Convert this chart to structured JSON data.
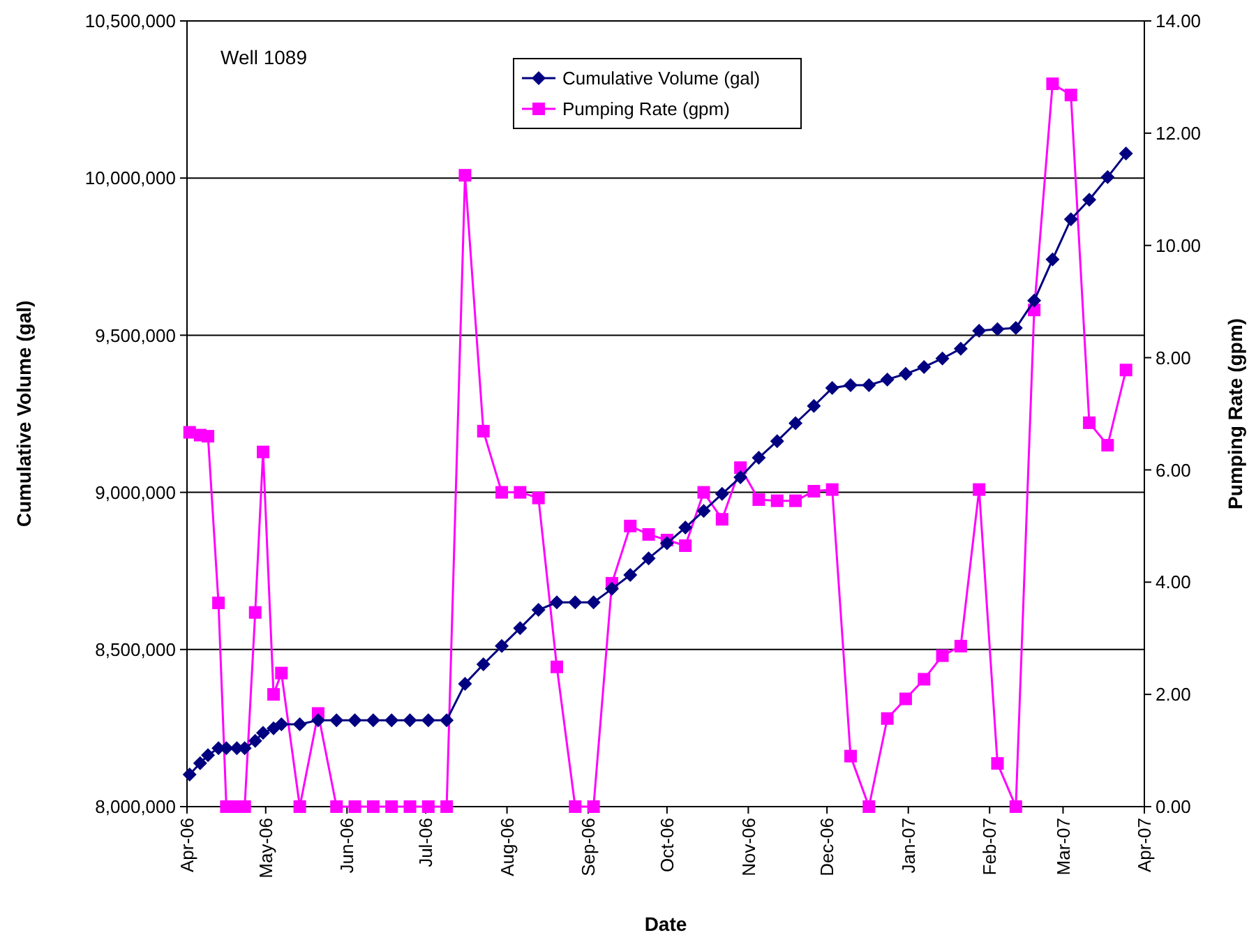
{
  "chart_data": {
    "type": "line",
    "xlabel": "Date",
    "ylabel": "Cumulative Volume (gal)",
    "y2label": "Pumping Rate (gpm)",
    "annotations": [
      "Well 1089"
    ],
    "x": [
      "2006-04-02",
      "2006-04-06",
      "2006-04-09",
      "2006-04-13",
      "2006-04-16",
      "2006-04-20",
      "2006-04-23",
      "2006-04-27",
      "2006-04-30",
      "2006-05-04",
      "2006-05-07",
      "2006-05-14",
      "2006-05-21",
      "2006-05-28",
      "2006-06-04",
      "2006-06-11",
      "2006-06-18",
      "2006-06-25",
      "2006-07-02",
      "2006-07-09",
      "2006-07-16",
      "2006-07-23",
      "2006-07-30",
      "2006-08-06",
      "2006-08-13",
      "2006-08-20",
      "2006-08-27",
      "2006-09-03",
      "2006-09-10",
      "2006-09-17",
      "2006-09-24",
      "2006-10-01",
      "2006-10-08",
      "2006-10-15",
      "2006-10-22",
      "2006-10-29",
      "2006-11-05",
      "2006-11-12",
      "2006-11-19",
      "2006-11-26",
      "2006-12-03",
      "2006-12-10",
      "2006-12-17",
      "2006-12-24",
      "2006-12-31",
      "2007-01-07",
      "2007-01-14",
      "2007-01-21",
      "2007-01-28",
      "2007-02-04",
      "2007-02-11",
      "2007-02-18",
      "2007-02-25",
      "2007-03-04",
      "2007-03-11",
      "2007-03-18",
      "2007-03-25"
    ],
    "series": [
      {
        "name": "Cumulative Volume (gal)",
        "color": "#000080",
        "marker": "diamond",
        "values": [
          8102000,
          8138000,
          8164000,
          8186000,
          8186000,
          8186000,
          8186000,
          8209000,
          8235000,
          8249000,
          8262000,
          8262000,
          8275000,
          8275000,
          8275000,
          8275000,
          8275000,
          8275000,
          8275000,
          8275000,
          8391000,
          8453000,
          8511000,
          8568000,
          8626000,
          8650000,
          8650000,
          8650000,
          8693000,
          8737000,
          8790000,
          8838000,
          8888000,
          8941000,
          8995000,
          9048000,
          9110000,
          9163000,
          9220000,
          9275000,
          9332000,
          9341000,
          9341000,
          9359000,
          9377000,
          9399000,
          9426000,
          9457000,
          9514000,
          9519000,
          9523000,
          9610000,
          9741000,
          9869000,
          9931000,
          10003000,
          10078000
        ]
      },
      {
        "name": "Pumping Rate (gpm)",
        "color": "#ff00ff",
        "marker": "square",
        "axis": "y2",
        "values": [
          6.67,
          6.62,
          6.6,
          3.63,
          0,
          0,
          0,
          3.46,
          6.32,
          2.0,
          2.38,
          0,
          1.66,
          0,
          0,
          0,
          0,
          0,
          0,
          0,
          11.25,
          6.69,
          5.6,
          5.6,
          5.5,
          2.49,
          0,
          0,
          3.98,
          5.0,
          4.85,
          4.75,
          4.65,
          5.6,
          5.12,
          6.04,
          5.47,
          5.45,
          5.45,
          5.62,
          5.65,
          0.9,
          0,
          1.57,
          1.92,
          2.27,
          2.69,
          2.86,
          5.65,
          0.77,
          0,
          8.85,
          12.88,
          12.68,
          6.84,
          6.44,
          7.78
        ]
      }
    ],
    "xlim": [
      "2006-04-01",
      "2007-04-01"
    ],
    "xticks": [
      {
        "value": "2006-04-01",
        "label": "Apr-06"
      },
      {
        "value": "2006-05-01",
        "label": "May-06"
      },
      {
        "value": "2006-06-01",
        "label": "Jun-06"
      },
      {
        "value": "2006-07-01",
        "label": "Jul-06"
      },
      {
        "value": "2006-08-01",
        "label": "Aug-06"
      },
      {
        "value": "2006-09-01",
        "label": "Sep-06"
      },
      {
        "value": "2006-10-01",
        "label": "Oct-06"
      },
      {
        "value": "2006-11-01",
        "label": "Nov-06"
      },
      {
        "value": "2006-12-01",
        "label": "Dec-06"
      },
      {
        "value": "2007-01-01",
        "label": "Jan-07"
      },
      {
        "value": "2007-02-01",
        "label": "Feb-07"
      },
      {
        "value": "2007-03-01",
        "label": "Mar-07"
      },
      {
        "value": "2007-04-01",
        "label": "Apr-07"
      }
    ],
    "ylim": [
      8000000,
      10500000
    ],
    "yticks": [
      {
        "value": 8000000,
        "label": "8,000,000"
      },
      {
        "value": 8500000,
        "label": "8,500,000"
      },
      {
        "value": 9000000,
        "label": "9,000,000"
      },
      {
        "value": 9500000,
        "label": "9,500,000"
      },
      {
        "value": 10000000,
        "label": "10,000,000"
      },
      {
        "value": 10500000,
        "label": "10,500,000"
      }
    ],
    "y2lim": [
      0,
      14
    ],
    "y2ticks": [
      {
        "value": 0,
        "label": "0.00"
      },
      {
        "value": 2,
        "label": "2.00"
      },
      {
        "value": 4,
        "label": "4.00"
      },
      {
        "value": 6,
        "label": "6.00"
      },
      {
        "value": 8,
        "label": "8.00"
      },
      {
        "value": 10,
        "label": "10.00"
      },
      {
        "value": 12,
        "label": "12.00"
      },
      {
        "value": 14,
        "label": "14.00"
      }
    ],
    "grid": "y",
    "legend": "top"
  }
}
